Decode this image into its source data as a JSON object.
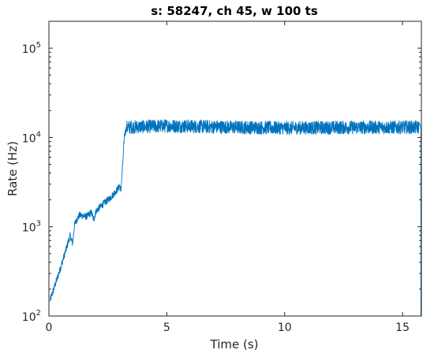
{
  "chart_data": {
    "type": "line",
    "title": "s: 58247, ch 45, w 100 ts",
    "xlabel": "Time (s)",
    "ylabel": "Rate (Hz)",
    "xlim": [
      0,
      15.8
    ],
    "ylim": [
      100,
      200000
    ],
    "yscale": "log",
    "grid": false,
    "x_ticks": [
      0,
      5,
      10,
      15
    ],
    "x_tick_labels": [
      "0",
      "5",
      "10",
      "15"
    ],
    "y_ticks": [
      100,
      1000,
      10000,
      100000
    ],
    "y_tick_labels": [
      {
        "base": "10",
        "exp": "2"
      },
      {
        "base": "10",
        "exp": "3"
      },
      {
        "base": "10",
        "exp": "4"
      },
      {
        "base": "10",
        "exp": "5"
      }
    ],
    "series": [
      {
        "color": "#0072bd",
        "noise_band": 0.15,
        "x": [
          0.05,
          0.5,
          0.9,
          1.0,
          1.1,
          1.3,
          1.6,
          1.8,
          1.9,
          2.0,
          2.3,
          2.6,
          2.9,
          3.0,
          3.05,
          3.15,
          3.2,
          3.3,
          5,
          8,
          10,
          12,
          14,
          15.7
        ],
        "y": [
          150,
          350,
          800,
          650,
          1100,
          1350,
          1300,
          1450,
          1200,
          1500,
          1800,
          2100,
          2600,
          2900,
          2500,
          6000,
          10500,
          13000,
          13500,
          13000,
          12800,
          12900,
          13000,
          13000
        ]
      }
    ],
    "final_drop": {
      "x": 15.78,
      "y_from": 13000,
      "y_to": 100
    }
  }
}
